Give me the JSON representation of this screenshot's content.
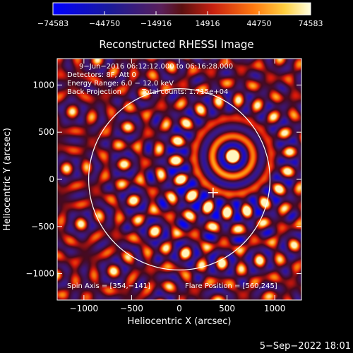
{
  "chart_data": {
    "type": "heatmap",
    "title": "Reconstructed RHESSI Image",
    "xlabel": "Heliocentric X (arcsec)",
    "ylabel": "Heliocentric Y (arcsec)",
    "xlim": [
      -1280,
      1280
    ],
    "ylim": [
      -1280,
      1280
    ],
    "x_ticks": [
      -1000,
      -500,
      0,
      500,
      1000
    ],
    "y_ticks": [
      -1000,
      -500,
      0,
      500,
      1000
    ],
    "x_tick_labels": [
      "−1000",
      "−500",
      "0",
      "500",
      "1000"
    ],
    "y_tick_labels": [
      "−1000",
      "−500",
      "0",
      "500",
      "1000"
    ],
    "colorbar": {
      "min": -74583,
      "max": 74583,
      "ticks": [
        -74583,
        -44750,
        -14916,
        14916,
        44750,
        74583
      ],
      "tick_labels": [
        "−74583",
        "−44750",
        "−14916",
        "14916",
        "44750",
        "74583"
      ]
    },
    "annotations": [
      "9−Jun−2016 06:12:12.000 to 06:16:28.000",
      "Detectors: 8F, Att 0",
      "Energy Range: 6.0 − 12.0 keV",
      "Back Projection",
      "Total counts: 1.715e+04"
    ],
    "spin_axis_label": "Spin Axis = [354,−141]",
    "flare_position_label": "Flare Position = [560,245]",
    "spin_axis": [
      354,
      -141
    ],
    "flare_position": [
      560,
      245
    ],
    "solar_disk_radius": 950,
    "timestamp": "5−Sep−2022 18:01",
    "grid": false
  }
}
